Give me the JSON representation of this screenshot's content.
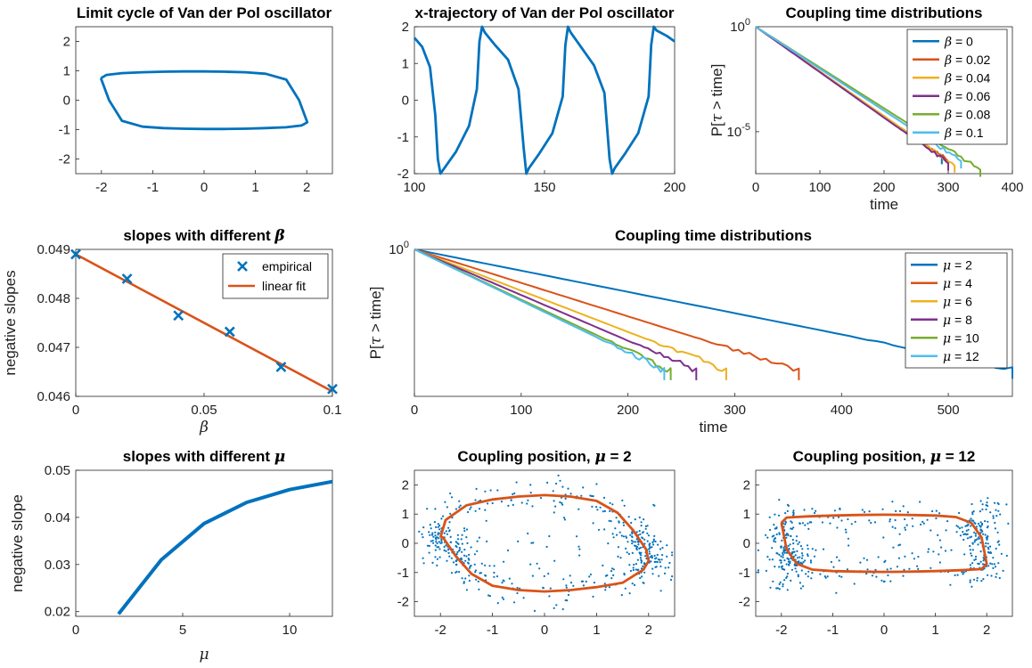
{
  "colors": {
    "blue": "#0072BD",
    "orange": "#D95319",
    "yellow": "#EDB120",
    "purple": "#7E2F8E",
    "green": "#77AC30",
    "cyan": "#4DBEEE",
    "axis": "#262626"
  },
  "chart_data": [
    {
      "id": "p1",
      "type": "line",
      "title": "Limit cycle of Van der Pol oscillator",
      "xlim": [
        -2.5,
        2.5
      ],
      "ylim": [
        -2.5,
        2.5
      ],
      "xticks": [
        -2,
        -1,
        0,
        1,
        2
      ],
      "yticks": [
        -2,
        -1,
        0,
        1,
        2
      ],
      "series": [
        {
          "color": "#0072BD",
          "x": [
            -2.01,
            -1.9,
            -1.6,
            -1.2,
            -0.8,
            -0.4,
            0.0,
            0.4,
            0.8,
            1.2,
            1.6,
            1.85,
            2.01,
            1.9,
            1.6,
            1.2,
            0.8,
            0.4,
            0.0,
            -0.4,
            -0.8,
            -1.2,
            -1.6,
            -1.85,
            -2.01
          ],
          "y": [
            0.75,
            0.86,
            0.92,
            0.95,
            0.97,
            0.98,
            0.98,
            0.97,
            0.95,
            0.9,
            0.7,
            0.0,
            -0.75,
            -0.86,
            -0.92,
            -0.95,
            -0.97,
            -0.98,
            -0.98,
            -0.97,
            -0.95,
            -0.9,
            -0.7,
            0.0,
            0.75
          ]
        }
      ]
    },
    {
      "id": "p2",
      "type": "line",
      "title": "x-trajectory of Van der Pol oscillator",
      "xlim": [
        100,
        200
      ],
      "ylim": [
        -2,
        2
      ],
      "xticks": [
        100,
        150,
        200
      ],
      "yticks": [
        -2,
        -1,
        0,
        1,
        2
      ],
      "series": [
        {
          "color": "#0072BD",
          "x": [
            100,
            103,
            106,
            108,
            109,
            110,
            112,
            116,
            121,
            124,
            125,
            126,
            127,
            131,
            136,
            140,
            142,
            143,
            144,
            148,
            153,
            157,
            158,
            159,
            160,
            164,
            169,
            173,
            175,
            176,
            177,
            181,
            186,
            190,
            191,
            192,
            193,
            197,
            200
          ],
          "y": [
            1.7,
            1.45,
            0.9,
            -0.4,
            -1.6,
            -2.0,
            -1.8,
            -1.4,
            -0.7,
            0.3,
            1.6,
            2.0,
            1.85,
            1.5,
            1.1,
            0.3,
            -1.3,
            -2.0,
            -1.85,
            -1.45,
            -0.9,
            0.1,
            1.5,
            2.0,
            1.85,
            1.45,
            0.95,
            0.2,
            -1.6,
            -2.0,
            -1.85,
            -1.45,
            -0.9,
            0.1,
            1.5,
            2.0,
            1.9,
            1.75,
            1.6
          ]
        }
      ]
    },
    {
      "id": "p3",
      "type": "line",
      "title": "Coupling time distributions",
      "xlabel": "time",
      "ylabel": "P[τ > time]",
      "yscale": "log",
      "xlim": [
        0,
        400
      ],
      "ylim_log10": [
        -7,
        0
      ],
      "xticks": [
        0,
        100,
        200,
        300,
        400
      ],
      "ytick_labels": [
        {
          "base": "10",
          "exp": "0",
          "value": 0
        },
        {
          "base": "10",
          "exp": "-5",
          "value": -5
        }
      ],
      "legend_position": "top-right",
      "series": [
        {
          "name": "β = 0",
          "color": "#0072BD",
          "end": 290,
          "endlog": -6.2
        },
        {
          "name": "β = 0.02",
          "color": "#D95319",
          "end": 300,
          "endlog": -6.4
        },
        {
          "name": "β = 0.04",
          "color": "#EDB120",
          "end": 310,
          "endlog": -6.6
        },
        {
          "name": "β = 0.06",
          "color": "#7E2F8E",
          "end": 300,
          "endlog": -6.5
        },
        {
          "name": "β = 0.08",
          "color": "#77AC30",
          "end": 350,
          "endlog": -6.8
        },
        {
          "name": "β = 0.1",
          "color": "#4DBEEE",
          "end": 320,
          "endlog": -6.4
        }
      ]
    },
    {
      "id": "p4",
      "type": "scatter",
      "title": "slopes with different β",
      "xlabel": "β",
      "ylabel": "negative slopes",
      "xlim": [
        0,
        0.1
      ],
      "ylim": [
        0.046,
        0.049
      ],
      "xticks": [
        0,
        0.05,
        0.1
      ],
      "yticks": [
        0.046,
        0.047,
        0.048,
        0.049
      ],
      "legend_position": "top-right",
      "empirical": {
        "name": "empirical",
        "color": "#0072BD",
        "x": [
          0,
          0.02,
          0.04,
          0.06,
          0.08,
          0.1
        ],
        "y": [
          0.0489,
          0.0484,
          0.04765,
          0.04732,
          0.0466,
          0.04615
        ]
      },
      "fit": {
        "name": "linear fit",
        "color": "#D95319",
        "x": [
          0,
          0.1
        ],
        "y": [
          0.0489,
          0.0461
        ]
      }
    },
    {
      "id": "p5",
      "type": "line",
      "title": "Coupling time distributions",
      "xlabel": "time",
      "ylabel": "P[τ > time]",
      "yscale": "log",
      "xlim": [
        0,
        560
      ],
      "ylim_log10": [
        -5,
        0
      ],
      "xticks": [
        0,
        100,
        200,
        300,
        400,
        500
      ],
      "ytick_labels": [
        {
          "base": "10",
          "exp": "0",
          "value": 0
        }
      ],
      "legend_position": "top-right",
      "series": [
        {
          "name": "μ = 2",
          "color": "#0072BD",
          "end": 560,
          "endlog": -4.05
        },
        {
          "name": "μ = 4",
          "color": "#D95319",
          "end": 360,
          "endlog": -4.1
        },
        {
          "name": "μ = 6",
          "color": "#EDB120",
          "end": 292,
          "endlog": -4.1
        },
        {
          "name": "μ = 8",
          "color": "#7E2F8E",
          "end": 264,
          "endlog": -4.1
        },
        {
          "name": "μ = 10",
          "color": "#77AC30",
          "end": 240,
          "endlog": -4.1
        },
        {
          "name": "μ = 12",
          "color": "#4DBEEE",
          "end": 234,
          "endlog": -4.1
        }
      ]
    },
    {
      "id": "p6",
      "type": "line",
      "title": "slopes with different μ",
      "xlabel": "μ",
      "ylabel": "negative slope",
      "xlim": [
        0,
        12
      ],
      "ylim": [
        0.019,
        0.05
      ],
      "xticks": [
        0,
        5,
        10
      ],
      "yticks": [
        0.02,
        0.03,
        0.04,
        0.05
      ],
      "series": [
        {
          "color": "#0072BD",
          "x": [
            2,
            4,
            6,
            8,
            10,
            12
          ],
          "y": [
            0.0195,
            0.031,
            0.0387,
            0.0432,
            0.0459,
            0.0476
          ]
        }
      ]
    },
    {
      "id": "p7",
      "type": "scatter",
      "title": "Coupling position, μ = 2",
      "xlim": [
        -2.5,
        2.5
      ],
      "ylim": [
        -2.5,
        2.5
      ],
      "xticks": [
        -2,
        -1,
        0,
        1,
        2
      ],
      "yticks": [
        -2,
        -1,
        0,
        1,
        2
      ],
      "cycle_color": "#D95319",
      "points_color": "#0072BD",
      "cycle": {
        "x": [
          -2.0,
          -1.9,
          -1.5,
          -1.0,
          -0.5,
          0.0,
          0.5,
          1.0,
          1.4,
          1.7,
          1.95,
          2.0,
          1.9,
          1.5,
          1.0,
          0.5,
          0.0,
          -0.5,
          -1.0,
          -1.4,
          -1.7,
          -1.95,
          -2.0
        ],
        "y": [
          0.2,
          0.8,
          1.3,
          1.5,
          1.6,
          1.65,
          1.6,
          1.45,
          1.05,
          0.45,
          -0.2,
          -0.6,
          -0.9,
          -1.35,
          -1.5,
          -1.6,
          -1.65,
          -1.6,
          -1.45,
          -1.05,
          -0.45,
          0.2,
          0.2
        ]
      }
    },
    {
      "id": "p8",
      "type": "scatter",
      "title": "Coupling position, μ = 12",
      "xlim": [
        -2.5,
        2.5
      ],
      "ylim": [
        -2.5,
        2.5
      ],
      "xticks": [
        -2,
        -1,
        0,
        1,
        2
      ],
      "yticks": [
        -2,
        -1,
        0,
        1,
        2
      ],
      "cycle_color": "#D95319",
      "points_color": "#0072BD",
      "cycle": {
        "x": [
          -2.0,
          -1.9,
          -1.5,
          -1.0,
          -0.5,
          0.0,
          0.5,
          1.0,
          1.4,
          1.7,
          1.9,
          2.0,
          1.9,
          1.5,
          1.0,
          0.5,
          0.0,
          -0.5,
          -1.0,
          -1.4,
          -1.7,
          -1.9,
          -2.0
        ],
        "y": [
          0.7,
          0.88,
          0.92,
          0.95,
          0.97,
          0.98,
          0.97,
          0.95,
          0.9,
          0.7,
          0.2,
          -0.7,
          -0.88,
          -0.92,
          -0.95,
          -0.97,
          -0.98,
          -0.97,
          -0.95,
          -0.9,
          -0.7,
          -0.2,
          0.7
        ]
      }
    }
  ]
}
